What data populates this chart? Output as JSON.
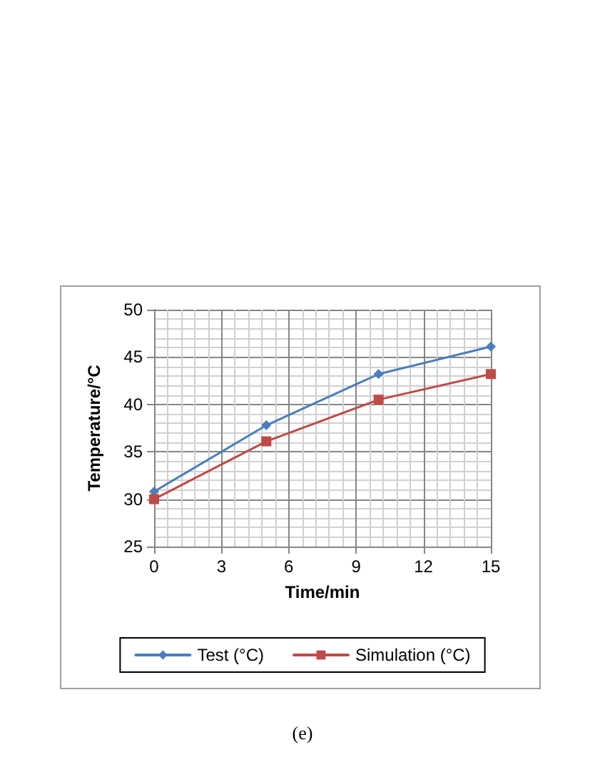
{
  "chart_data": {
    "type": "line",
    "xlabel": "Time/min",
    "ylabel": "Temperature/°C",
    "annotations": [
      "(e)"
    ],
    "x": [
      0,
      5,
      10,
      15
    ],
    "series": [
      {
        "name": "Test (°C)",
        "color": "#4a7ebb",
        "marker": "diamond",
        "values": [
          30.8,
          37.8,
          43.2,
          46.1
        ]
      },
      {
        "name": "Simulation (°C)",
        "color": "#be4b48",
        "marker": "square",
        "values": [
          30.0,
          36.1,
          40.5,
          43.2
        ]
      }
    ],
    "xlim": [
      0,
      15
    ],
    "xticks": [
      0,
      3,
      6,
      9,
      12,
      15
    ],
    "ylim": [
      25,
      50
    ],
    "yticks": [
      25,
      30,
      35,
      40,
      45,
      50
    ],
    "grid": true,
    "legend": "bottom",
    "line_style": "solid"
  }
}
